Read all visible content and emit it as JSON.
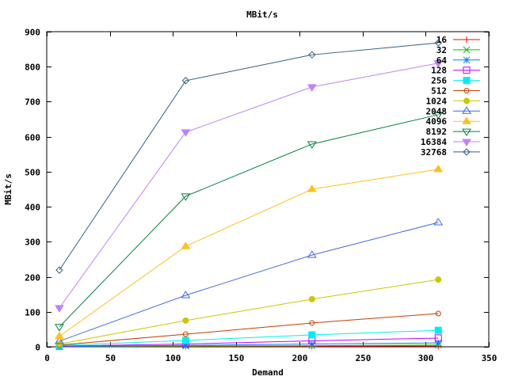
{
  "chart_data": {
    "type": "line",
    "title": "MBit/s",
    "xlabel": "Demand",
    "ylabel": "MBit/s",
    "xlim": [
      0,
      350
    ],
    "ylim": [
      0,
      900
    ],
    "xticks": [
      0,
      50,
      100,
      150,
      200,
      250,
      300,
      350
    ],
    "yticks": [
      0,
      100,
      200,
      300,
      400,
      500,
      600,
      700,
      800,
      900
    ],
    "grid": false,
    "legend_position": "top-right",
    "x": [
      10,
      110,
      210,
      310
    ],
    "series": [
      {
        "name": "16",
        "color": "#ff0000",
        "marker": "plus",
        "values": [
          0.5,
          1,
          1.5,
          2
        ]
      },
      {
        "name": "32",
        "color": "#00c000",
        "marker": "cross",
        "values": [
          1,
          2,
          3,
          5
        ]
      },
      {
        "name": "64",
        "color": "#0080ff",
        "marker": "star",
        "values": [
          1,
          4,
          8,
          11
        ]
      },
      {
        "name": "128",
        "color": "#c000ff",
        "marker": "box",
        "values": [
          2,
          8,
          17,
          25
        ]
      },
      {
        "name": "256",
        "color": "#00eeee",
        "marker": "filled-box",
        "values": [
          4,
          18,
          34,
          47
        ]
      },
      {
        "name": "512",
        "color": "#c04000",
        "marker": "circle",
        "values": [
          5,
          36,
          68,
          95
        ]
      },
      {
        "name": "1024",
        "color": "#c8c800",
        "marker": "filled-circle",
        "values": [
          8,
          75,
          136,
          192
        ]
      },
      {
        "name": "2048",
        "color": "#4169e1",
        "marker": "triangle",
        "values": [
          16,
          147,
          262,
          355
        ]
      },
      {
        "name": "4096",
        "color": "#ffc020",
        "marker": "filled-triangle",
        "values": [
          30,
          287,
          450,
          507
        ]
      },
      {
        "name": "8192",
        "color": "#008040",
        "marker": "inv-triangle",
        "values": [
          57,
          430,
          579,
          663
        ]
      },
      {
        "name": "16384",
        "color": "#c080ff",
        "marker": "filled-inv-triangle",
        "values": [
          111,
          613,
          742,
          810
        ]
      },
      {
        "name": "32768",
        "color": "#306080",
        "marker": "diamond",
        "values": [
          219,
          760,
          834,
          868
        ]
      }
    ]
  }
}
